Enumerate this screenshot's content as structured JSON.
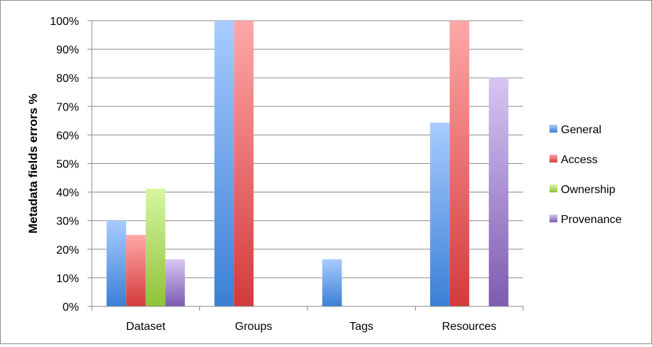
{
  "chart_data": {
    "type": "bar",
    "categories": [
      "Dataset",
      "Groups",
      "Tags",
      "Resources"
    ],
    "series": [
      {
        "name": "General",
        "values": [
          30,
          100,
          16.5,
          64.3
        ]
      },
      {
        "name": "Access",
        "values": [
          25,
          100,
          0,
          100
        ]
      },
      {
        "name": "Ownership",
        "values": [
          41.2,
          0,
          0,
          0
        ]
      },
      {
        "name": "Provenance",
        "values": [
          16.5,
          0,
          0,
          80
        ]
      }
    ],
    "colors": {
      "General": [
        "#a8ccff",
        "#3a7fd5"
      ],
      "Access": [
        "#ffa7a7",
        "#d23b3b"
      ],
      "Ownership": [
        "#d6f6a0",
        "#8fc23a"
      ],
      "Provenance": [
        "#d7c6f3",
        "#7d5bb0"
      ]
    },
    "ylabel": "Metadata fields errors %",
    "ylim": [
      0,
      100
    ],
    "yticks": [
      "0%",
      "10%",
      "20%",
      "30%",
      "40%",
      "50%",
      "60%",
      "70%",
      "80%",
      "90%",
      "100%"
    ],
    "grid": true,
    "legend": "right"
  }
}
